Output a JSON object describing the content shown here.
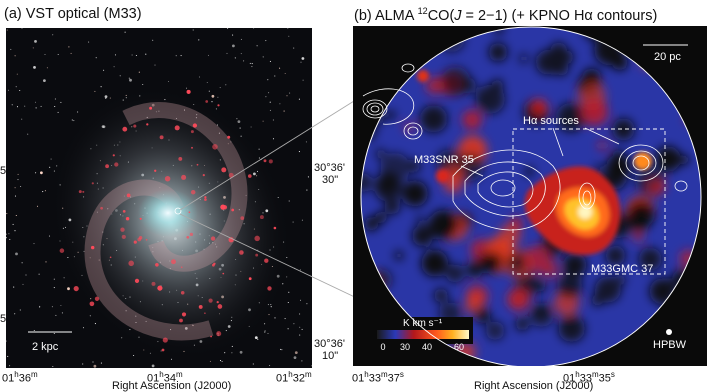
{
  "panel_a": {
    "title": "(a) VST optical (M33)",
    "scalebar": "2 kpc",
    "x_ticks": [
      {
        "h": "01",
        "hs": "h",
        "m": "36",
        "ms": "m"
      },
      {
        "h": "01",
        "hs": "h",
        "m": "34",
        "ms": "m"
      },
      {
        "h": "01",
        "hs": "h",
        "m": "32",
        "ms": "m"
      }
    ],
    "y_ticks": [
      "5'",
      "5'"
    ],
    "xlabel": "Right Ascension (J2000)"
  },
  "panel_b": {
    "title_pre": "(b) ALMA ",
    "title_sup": "12",
    "title_co": "CO(",
    "title_j": "J",
    "title_post": " = 2−1) (+ KPNO Hα contours)",
    "scalebar": "20 pc",
    "labels": {
      "ha_sources": "Hα sources",
      "snr": "M33SNR 35",
      "gmc": "M33GMC 37",
      "hpbw": "HPBW"
    },
    "y_ticks": [
      {
        "deg": "30°36'",
        "sec": "30\""
      },
      {
        "deg": "30°36'",
        "sec": "10\""
      }
    ],
    "x_ticks": [
      {
        "h": "01",
        "hs": "h",
        "m": "33",
        "ms": "m",
        "s": "37",
        "ss": "s"
      },
      {
        "h": "01",
        "hs": "h",
        "m": "33",
        "ms": "m",
        "s": "35",
        "ss": "s"
      }
    ],
    "xlabel": "Right Ascension (J2000)",
    "colorbar": {
      "label": "K km s⁻¹",
      "ticks": [
        "0",
        "30",
        "40",
        "60"
      ],
      "colors": [
        "#1a1a1a",
        "#b3171b",
        "#ff5a1e",
        "#ffb020",
        "#fff9c8"
      ]
    }
  }
}
